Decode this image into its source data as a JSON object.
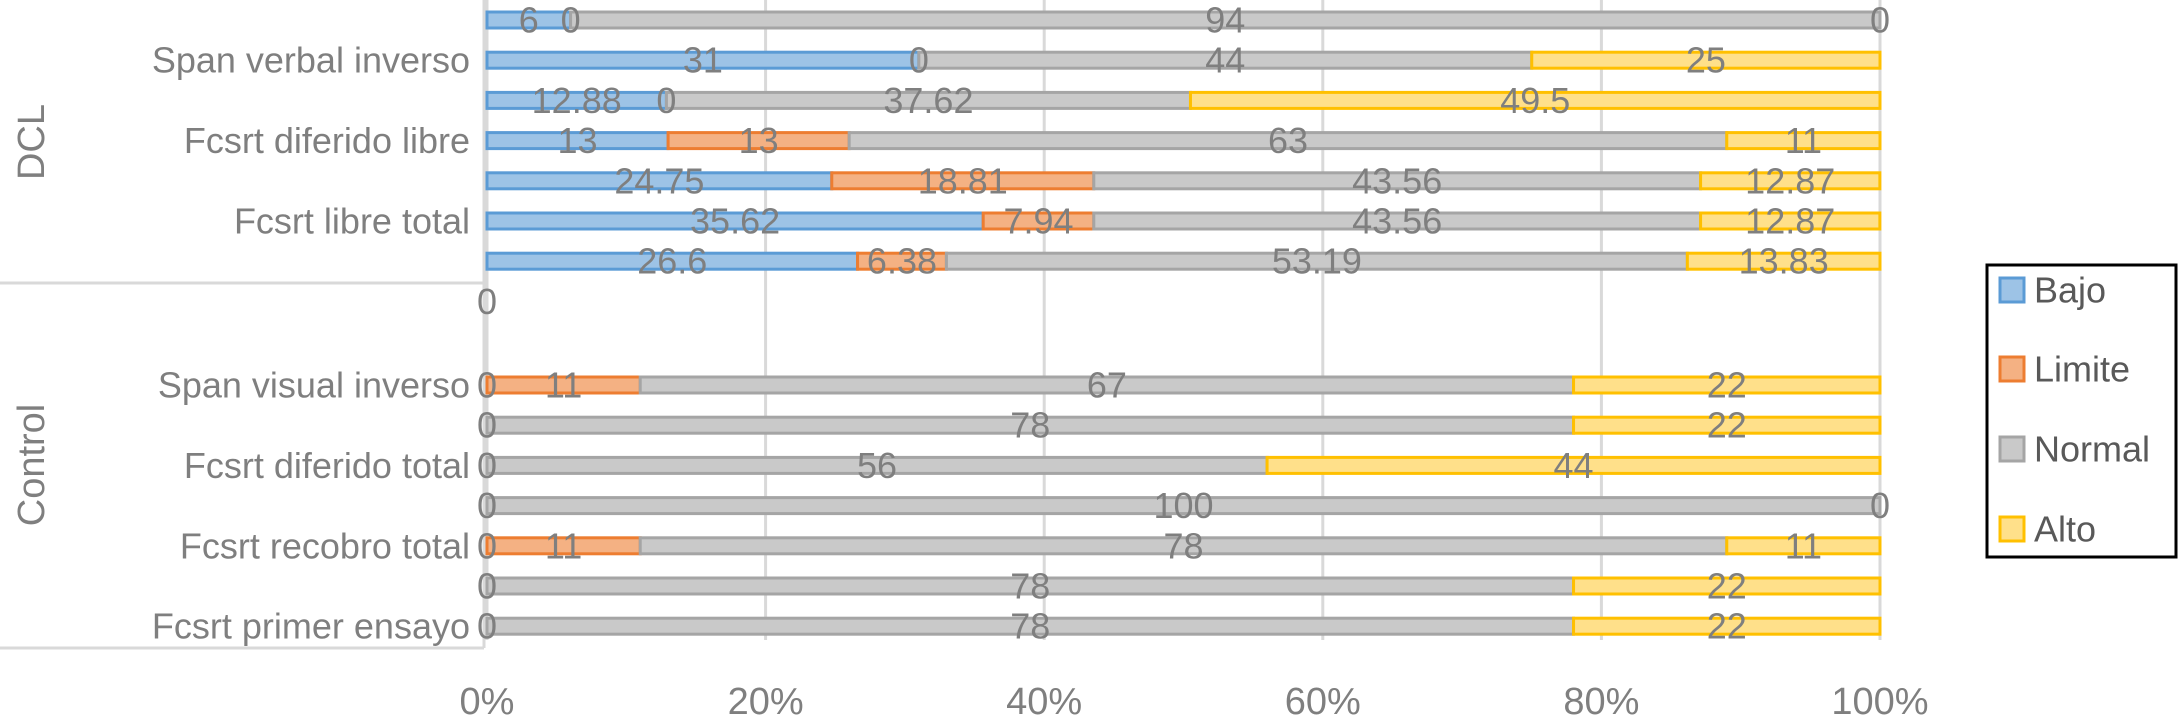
{
  "chart_data": {
    "type": "bar",
    "orientation": "horizontal",
    "stacking": "percent",
    "xlim": [
      0,
      100
    ],
    "x_ticks": [
      "0%",
      "20%",
      "40%",
      "60%",
      "80%",
      "100%"
    ],
    "grid": true,
    "legend_position": "right",
    "series": [
      {
        "name": "Bajo",
        "color": "#9dc3e6",
        "border": "#5b9bd5"
      },
      {
        "name": "Limite",
        "color": "#f4b183",
        "border": "#ed7d31"
      },
      {
        "name": "Normal",
        "color": "#c9c9c9",
        "border": "#a5a5a5"
      },
      {
        "name": "Alto",
        "color": "#ffe08a",
        "border": "#ffc000"
      }
    ],
    "groups": [
      {
        "name": "DCL",
        "rows": [
          {
            "label": "",
            "values": [
              6,
              0,
              94,
              0
            ],
            "labels": [
              "6",
              "0",
              "94",
              "0"
            ]
          },
          {
            "label": "Span verbal inverso",
            "values": [
              31,
              0,
              44,
              25
            ],
            "labels": [
              "31",
              "0",
              "44",
              "25"
            ]
          },
          {
            "label": "",
            "values": [
              12.88,
              0,
              37.62,
              49.5
            ],
            "labels": [
              "12.88",
              "0",
              "37.62",
              "49.5"
            ]
          },
          {
            "label": "Fcsrt diferido libre",
            "values": [
              13,
              13,
              63,
              11
            ],
            "labels": [
              "13",
              "13",
              "63",
              "11"
            ]
          },
          {
            "label": "",
            "values": [
              24.75,
              18.81,
              43.56,
              12.87
            ],
            "labels": [
              "24.75",
              "18.81",
              "43.56",
              "12.87"
            ]
          },
          {
            "label": "Fcsrt libre total",
            "values": [
              35.62,
              7.94,
              43.56,
              12.87
            ],
            "labels": [
              "35.62",
              "7.94",
              "43.56",
              "12.87"
            ]
          },
          {
            "label": "",
            "values": [
              26.6,
              6.38,
              53.19,
              13.83
            ],
            "labels": [
              "26.6",
              "6.38",
              "53.19",
              "13.83"
            ]
          },
          {
            "label": "",
            "values": [
              0,
              0,
              0,
              0
            ],
            "labels": [
              "0",
              "",
              "",
              ""
            ]
          }
        ]
      },
      {
        "name": "Control",
        "rows": [
          {
            "label": "Span visual inverso",
            "values": [
              0,
              11,
              67,
              22
            ],
            "labels": [
              "0",
              "11",
              "67",
              "22"
            ]
          },
          {
            "label": "",
            "values": [
              0,
              0,
              78,
              22
            ],
            "labels": [
              "0",
              "",
              "78",
              "22"
            ]
          },
          {
            "label": "Fcsrt diferido total",
            "values": [
              0,
              0,
              56,
              44
            ],
            "labels": [
              "0",
              "",
              "56",
              "44"
            ]
          },
          {
            "label": "",
            "values": [
              0,
              0,
              100,
              0
            ],
            "labels": [
              "0",
              "",
              "100",
              "0"
            ]
          },
          {
            "label": "Fcsrt recobro total",
            "values": [
              0,
              11,
              78,
              11
            ],
            "labels": [
              "0",
              "11",
              "78",
              "11"
            ]
          },
          {
            "label": "",
            "values": [
              0,
              0,
              78,
              22
            ],
            "labels": [
              "0",
              "",
              "78",
              "22"
            ]
          },
          {
            "label": "Fcsrt primer ensayo",
            "values": [
              0,
              0,
              78,
              22
            ],
            "labels": [
              "0",
              "",
              "78",
              "22"
            ]
          }
        ]
      }
    ]
  }
}
